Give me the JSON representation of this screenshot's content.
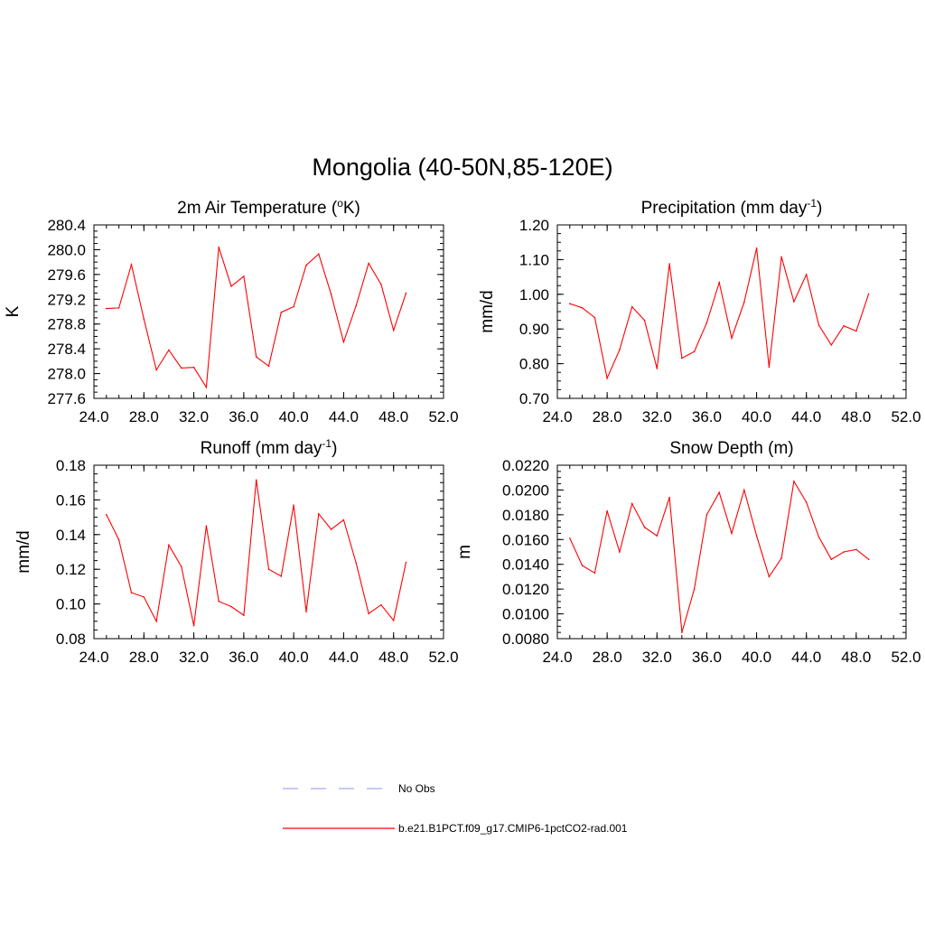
{
  "figure": {
    "title": "Mongolia (40-50N,85-120E)"
  },
  "legend": {
    "items": [
      {
        "label": "No Obs",
        "color": "#a9a9f2",
        "style": "dashed"
      },
      {
        "label": "b.e21.B1PCT.f09_g17.CMIP6-1pctCO2-rad.001",
        "color": "#ff0000",
        "style": "solid"
      }
    ]
  },
  "chart_data": [
    {
      "type": "line",
      "title": "2m Air Temperature (",
      "title_sup": "o",
      "title_tail": "K)",
      "xlabel": "",
      "ylabel": "K",
      "xlim": [
        24,
        52
      ],
      "ylim": [
        277.6,
        280.4
      ],
      "xticks": [
        "24.0",
        "28.0",
        "32.0",
        "36.0",
        "40.0",
        "44.0",
        "48.0",
        "52.0"
      ],
      "yticks": [
        "277.6",
        "278.0",
        "278.4",
        "278.8",
        "279.2",
        "279.6",
        "280.0",
        "280.4"
      ],
      "grid": false,
      "series": [
        {
          "color": "#ff0000",
          "x": [
            25,
            26,
            27,
            28,
            29,
            30,
            31,
            32,
            33,
            34,
            35,
            36,
            37,
            38,
            39,
            40,
            41,
            42,
            43,
            44,
            45,
            46,
            47,
            48,
            49
          ],
          "values": [
            279.05,
            279.06,
            279.76,
            278.88,
            278.06,
            278.38,
            278.09,
            278.1,
            277.78,
            280.04,
            279.41,
            279.57,
            278.27,
            278.12,
            278.99,
            279.08,
            279.75,
            279.93,
            279.28,
            278.51,
            279.1,
            279.78,
            279.44,
            278.7,
            279.3
          ]
        }
      ]
    },
    {
      "type": "line",
      "title": "Precipitation (mm day",
      "title_sup": "-1",
      "title_tail": ")",
      "xlabel": "",
      "ylabel": "mm/d",
      "xlim": [
        24,
        52
      ],
      "ylim": [
        0.7,
        1.2
      ],
      "xticks": [
        "24.0",
        "28.0",
        "32.0",
        "36.0",
        "40.0",
        "44.0",
        "48.0",
        "52.0"
      ],
      "yticks": [
        "0.70",
        "0.80",
        "0.90",
        "1.00",
        "1.10",
        "1.20"
      ],
      "grid": false,
      "series": [
        {
          "color": "#ff0000",
          "x": [
            25,
            26,
            27,
            28,
            29,
            30,
            31,
            32,
            33,
            34,
            35,
            36,
            37,
            38,
            39,
            40,
            41,
            42,
            43,
            44,
            45,
            46,
            47,
            48,
            49
          ],
          "values": [
            0.973,
            0.961,
            0.933,
            0.758,
            0.84,
            0.964,
            0.925,
            0.786,
            1.088,
            0.816,
            0.835,
            0.918,
            1.034,
            0.874,
            0.977,
            1.133,
            0.79,
            1.108,
            0.979,
            1.057,
            0.911,
            0.854,
            0.909,
            0.894,
            1.001
          ]
        }
      ]
    },
    {
      "type": "line",
      "title": "Runoff (mm day",
      "title_sup": "-1",
      "title_tail": ")",
      "xlabel": "",
      "ylabel": "mm/d",
      "xlim": [
        24,
        52
      ],
      "ylim": [
        0.08,
        0.18
      ],
      "xticks": [
        "24.0",
        "28.0",
        "32.0",
        "36.0",
        "40.0",
        "44.0",
        "48.0",
        "52.0"
      ],
      "yticks": [
        "0.08",
        "0.10",
        "0.12",
        "0.14",
        "0.16",
        "0.18"
      ],
      "grid": false,
      "series": [
        {
          "color": "#ff0000",
          "x": [
            25,
            26,
            27,
            28,
            29,
            30,
            31,
            32,
            33,
            34,
            35,
            36,
            37,
            38,
            39,
            40,
            41,
            42,
            43,
            44,
            45,
            46,
            47,
            48,
            49
          ],
          "values": [
            0.1515,
            0.137,
            0.1065,
            0.104,
            0.09,
            0.134,
            0.1215,
            0.0875,
            0.145,
            0.1015,
            0.0985,
            0.0935,
            0.1715,
            0.12,
            0.116,
            0.157,
            0.0955,
            0.152,
            0.143,
            0.1485,
            0.1235,
            0.0945,
            0.0995,
            0.0905,
            0.124
          ]
        }
      ]
    },
    {
      "type": "line",
      "title": "Snow Depth (m)",
      "title_sup": "",
      "title_tail": "",
      "xlabel": "",
      "ylabel": "m",
      "xlim": [
        24,
        52
      ],
      "ylim": [
        0.008,
        0.022
      ],
      "xticks": [
        "24.0",
        "28.0",
        "32.0",
        "36.0",
        "40.0",
        "44.0",
        "48.0",
        "52.0"
      ],
      "yticks": [
        "0.0080",
        "0.0100",
        "0.0120",
        "0.0140",
        "0.0160",
        "0.0180",
        "0.0200",
        "0.0220"
      ],
      "grid": false,
      "series": [
        {
          "color": "#ff0000",
          "x": [
            25,
            26,
            27,
            28,
            29,
            30,
            31,
            32,
            33,
            34,
            35,
            36,
            37,
            38,
            39,
            40,
            41,
            42,
            43,
            44,
            45,
            46,
            47,
            48,
            49
          ],
          "values": [
            0.0161,
            0.0139,
            0.0133,
            0.0183,
            0.015,
            0.0189,
            0.017,
            0.0163,
            0.0194,
            0.0085,
            0.012,
            0.018,
            0.0198,
            0.0165,
            0.02,
            0.0163,
            0.013,
            0.0145,
            0.0207,
            0.019,
            0.0162,
            0.0144,
            0.015,
            0.0152,
            0.0144
          ]
        }
      ]
    }
  ]
}
